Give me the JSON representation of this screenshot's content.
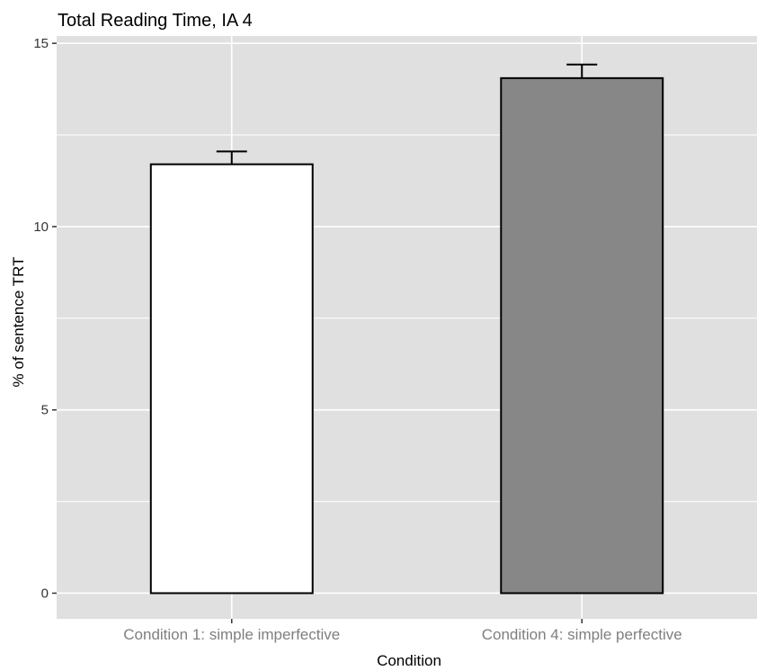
{
  "chart_data": {
    "type": "bar",
    "title": "Total Reading Time, IA 4",
    "xlabel": "Condition",
    "ylabel": "% of sentence TRT",
    "categories": [
      "Condition 1: simple imperfective",
      "Condition 4: simple perfective"
    ],
    "values": [
      11.7,
      14.05
    ],
    "error_upper": [
      12.05,
      14.42
    ],
    "bar_colors": [
      "#ffffff",
      "#878787"
    ],
    "ylim": [
      -0.7,
      15.2
    ],
    "yticks": [
      0,
      5,
      10,
      15
    ],
    "yticks_minor": [
      2.5,
      7.5,
      12.5
    ],
    "grid": true,
    "panel_background": "#e0e0e0",
    "gridline_color": "#ffffff"
  }
}
